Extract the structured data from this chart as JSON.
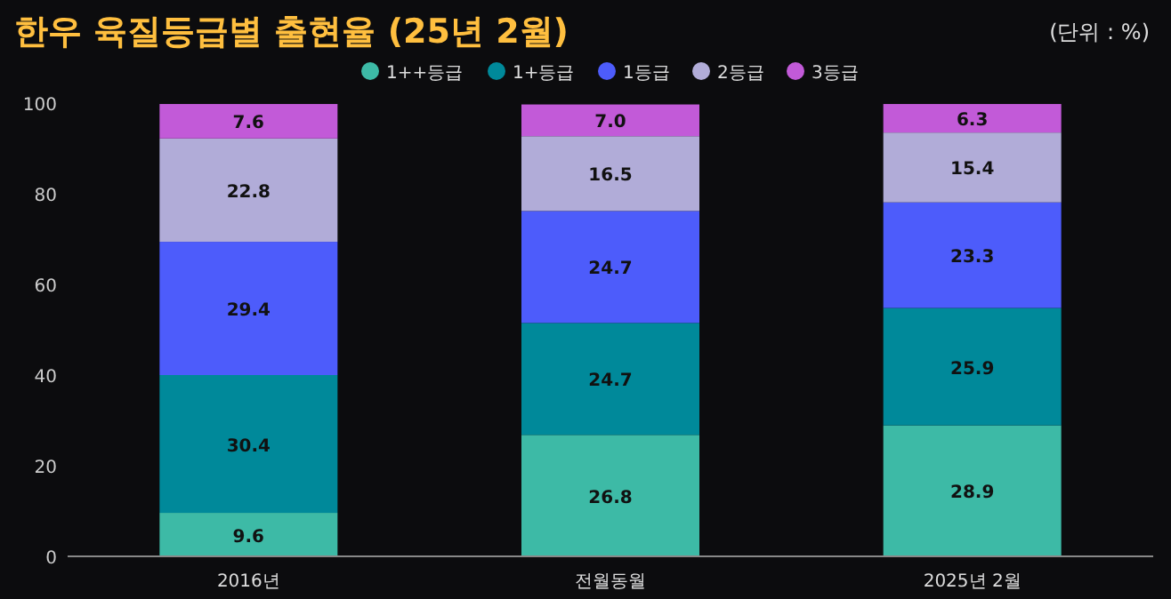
{
  "chart_data": {
    "type": "bar",
    "stacked": true,
    "title": "한우 육질등급별 출현율 (25년 2월)",
    "annotations": [
      "(단위 : %)"
    ],
    "categories": [
      "2016년",
      "전월동월",
      "2025년 2월"
    ],
    "series": [
      {
        "name": "1++등급",
        "color": "#3dbaa6",
        "values": [
          9.6,
          26.8,
          28.9
        ],
        "value_labels": [
          "9.6",
          "26.8",
          "28.9"
        ]
      },
      {
        "name": "1+등급",
        "color": "#00899a",
        "values": [
          30.4,
          24.7,
          25.9
        ],
        "value_labels": [
          "30.4",
          "24.7",
          "25.9"
        ]
      },
      {
        "name": "1등급",
        "color": "#4d5cfb",
        "values": [
          29.4,
          24.7,
          23.3
        ],
        "value_labels": [
          "29.4",
          "24.7",
          "23.3"
        ]
      },
      {
        "name": "2등급",
        "color": "#b1acd8",
        "values": [
          22.8,
          16.5,
          15.4
        ],
        "value_labels": [
          "22.8",
          "16.5",
          "15.4"
        ]
      },
      {
        "name": "3등급",
        "color": "#c25ad8",
        "values": [
          7.6,
          7.0,
          6.3
        ],
        "value_labels": [
          "7.6",
          "7.0",
          "6.3"
        ]
      }
    ],
    "ylim": [
      0,
      100
    ],
    "yticks": [
      0,
      20,
      40,
      60,
      80,
      100
    ],
    "legend": "top"
  }
}
